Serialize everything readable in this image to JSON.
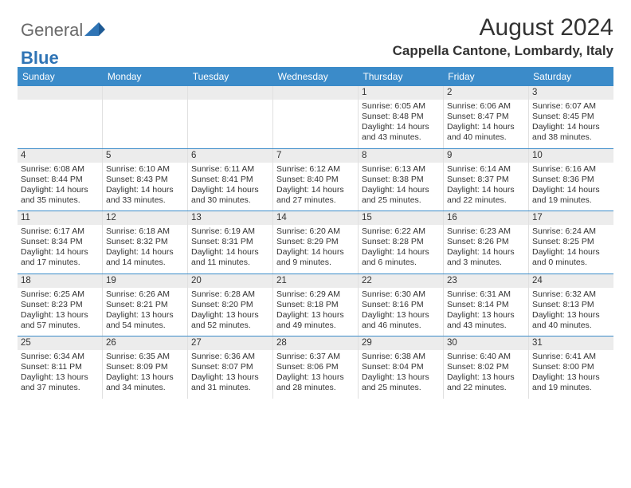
{
  "logo": {
    "text1": "General",
    "text2": "Blue"
  },
  "title": "August 2024",
  "location": "Cappella Cantone, Lombardy, Italy",
  "colors": {
    "header_bg": "#3b8bc9",
    "header_text": "#ffffff",
    "daynum_bg": "#ececec",
    "week_sep": "#3b8bc9",
    "body_text": "#333333",
    "logo_gray": "#6a6a6a",
    "logo_blue": "#2f74b5",
    "page_bg": "#ffffff"
  },
  "day_headers": [
    "Sunday",
    "Monday",
    "Tuesday",
    "Wednesday",
    "Thursday",
    "Friday",
    "Saturday"
  ],
  "weeks": [
    [
      {
        "n": "",
        "sr": "",
        "ss": "",
        "dl": ""
      },
      {
        "n": "",
        "sr": "",
        "ss": "",
        "dl": ""
      },
      {
        "n": "",
        "sr": "",
        "ss": "",
        "dl": ""
      },
      {
        "n": "",
        "sr": "",
        "ss": "",
        "dl": ""
      },
      {
        "n": "1",
        "sr": "Sunrise: 6:05 AM",
        "ss": "Sunset: 8:48 PM",
        "dl": "Daylight: 14 hours and 43 minutes."
      },
      {
        "n": "2",
        "sr": "Sunrise: 6:06 AM",
        "ss": "Sunset: 8:47 PM",
        "dl": "Daylight: 14 hours and 40 minutes."
      },
      {
        "n": "3",
        "sr": "Sunrise: 6:07 AM",
        "ss": "Sunset: 8:45 PM",
        "dl": "Daylight: 14 hours and 38 minutes."
      }
    ],
    [
      {
        "n": "4",
        "sr": "Sunrise: 6:08 AM",
        "ss": "Sunset: 8:44 PM",
        "dl": "Daylight: 14 hours and 35 minutes."
      },
      {
        "n": "5",
        "sr": "Sunrise: 6:10 AM",
        "ss": "Sunset: 8:43 PM",
        "dl": "Daylight: 14 hours and 33 minutes."
      },
      {
        "n": "6",
        "sr": "Sunrise: 6:11 AM",
        "ss": "Sunset: 8:41 PM",
        "dl": "Daylight: 14 hours and 30 minutes."
      },
      {
        "n": "7",
        "sr": "Sunrise: 6:12 AM",
        "ss": "Sunset: 8:40 PM",
        "dl": "Daylight: 14 hours and 27 minutes."
      },
      {
        "n": "8",
        "sr": "Sunrise: 6:13 AM",
        "ss": "Sunset: 8:38 PM",
        "dl": "Daylight: 14 hours and 25 minutes."
      },
      {
        "n": "9",
        "sr": "Sunrise: 6:14 AM",
        "ss": "Sunset: 8:37 PM",
        "dl": "Daylight: 14 hours and 22 minutes."
      },
      {
        "n": "10",
        "sr": "Sunrise: 6:16 AM",
        "ss": "Sunset: 8:36 PM",
        "dl": "Daylight: 14 hours and 19 minutes."
      }
    ],
    [
      {
        "n": "11",
        "sr": "Sunrise: 6:17 AM",
        "ss": "Sunset: 8:34 PM",
        "dl": "Daylight: 14 hours and 17 minutes."
      },
      {
        "n": "12",
        "sr": "Sunrise: 6:18 AM",
        "ss": "Sunset: 8:32 PM",
        "dl": "Daylight: 14 hours and 14 minutes."
      },
      {
        "n": "13",
        "sr": "Sunrise: 6:19 AM",
        "ss": "Sunset: 8:31 PM",
        "dl": "Daylight: 14 hours and 11 minutes."
      },
      {
        "n": "14",
        "sr": "Sunrise: 6:20 AM",
        "ss": "Sunset: 8:29 PM",
        "dl": "Daylight: 14 hours and 9 minutes."
      },
      {
        "n": "15",
        "sr": "Sunrise: 6:22 AM",
        "ss": "Sunset: 8:28 PM",
        "dl": "Daylight: 14 hours and 6 minutes."
      },
      {
        "n": "16",
        "sr": "Sunrise: 6:23 AM",
        "ss": "Sunset: 8:26 PM",
        "dl": "Daylight: 14 hours and 3 minutes."
      },
      {
        "n": "17",
        "sr": "Sunrise: 6:24 AM",
        "ss": "Sunset: 8:25 PM",
        "dl": "Daylight: 14 hours and 0 minutes."
      }
    ],
    [
      {
        "n": "18",
        "sr": "Sunrise: 6:25 AM",
        "ss": "Sunset: 8:23 PM",
        "dl": "Daylight: 13 hours and 57 minutes."
      },
      {
        "n": "19",
        "sr": "Sunrise: 6:26 AM",
        "ss": "Sunset: 8:21 PM",
        "dl": "Daylight: 13 hours and 54 minutes."
      },
      {
        "n": "20",
        "sr": "Sunrise: 6:28 AM",
        "ss": "Sunset: 8:20 PM",
        "dl": "Daylight: 13 hours and 52 minutes."
      },
      {
        "n": "21",
        "sr": "Sunrise: 6:29 AM",
        "ss": "Sunset: 8:18 PM",
        "dl": "Daylight: 13 hours and 49 minutes."
      },
      {
        "n": "22",
        "sr": "Sunrise: 6:30 AM",
        "ss": "Sunset: 8:16 PM",
        "dl": "Daylight: 13 hours and 46 minutes."
      },
      {
        "n": "23",
        "sr": "Sunrise: 6:31 AM",
        "ss": "Sunset: 8:14 PM",
        "dl": "Daylight: 13 hours and 43 minutes."
      },
      {
        "n": "24",
        "sr": "Sunrise: 6:32 AM",
        "ss": "Sunset: 8:13 PM",
        "dl": "Daylight: 13 hours and 40 minutes."
      }
    ],
    [
      {
        "n": "25",
        "sr": "Sunrise: 6:34 AM",
        "ss": "Sunset: 8:11 PM",
        "dl": "Daylight: 13 hours and 37 minutes."
      },
      {
        "n": "26",
        "sr": "Sunrise: 6:35 AM",
        "ss": "Sunset: 8:09 PM",
        "dl": "Daylight: 13 hours and 34 minutes."
      },
      {
        "n": "27",
        "sr": "Sunrise: 6:36 AM",
        "ss": "Sunset: 8:07 PM",
        "dl": "Daylight: 13 hours and 31 minutes."
      },
      {
        "n": "28",
        "sr": "Sunrise: 6:37 AM",
        "ss": "Sunset: 8:06 PM",
        "dl": "Daylight: 13 hours and 28 minutes."
      },
      {
        "n": "29",
        "sr": "Sunrise: 6:38 AM",
        "ss": "Sunset: 8:04 PM",
        "dl": "Daylight: 13 hours and 25 minutes."
      },
      {
        "n": "30",
        "sr": "Sunrise: 6:40 AM",
        "ss": "Sunset: 8:02 PM",
        "dl": "Daylight: 13 hours and 22 minutes."
      },
      {
        "n": "31",
        "sr": "Sunrise: 6:41 AM",
        "ss": "Sunset: 8:00 PM",
        "dl": "Daylight: 13 hours and 19 minutes."
      }
    ]
  ]
}
